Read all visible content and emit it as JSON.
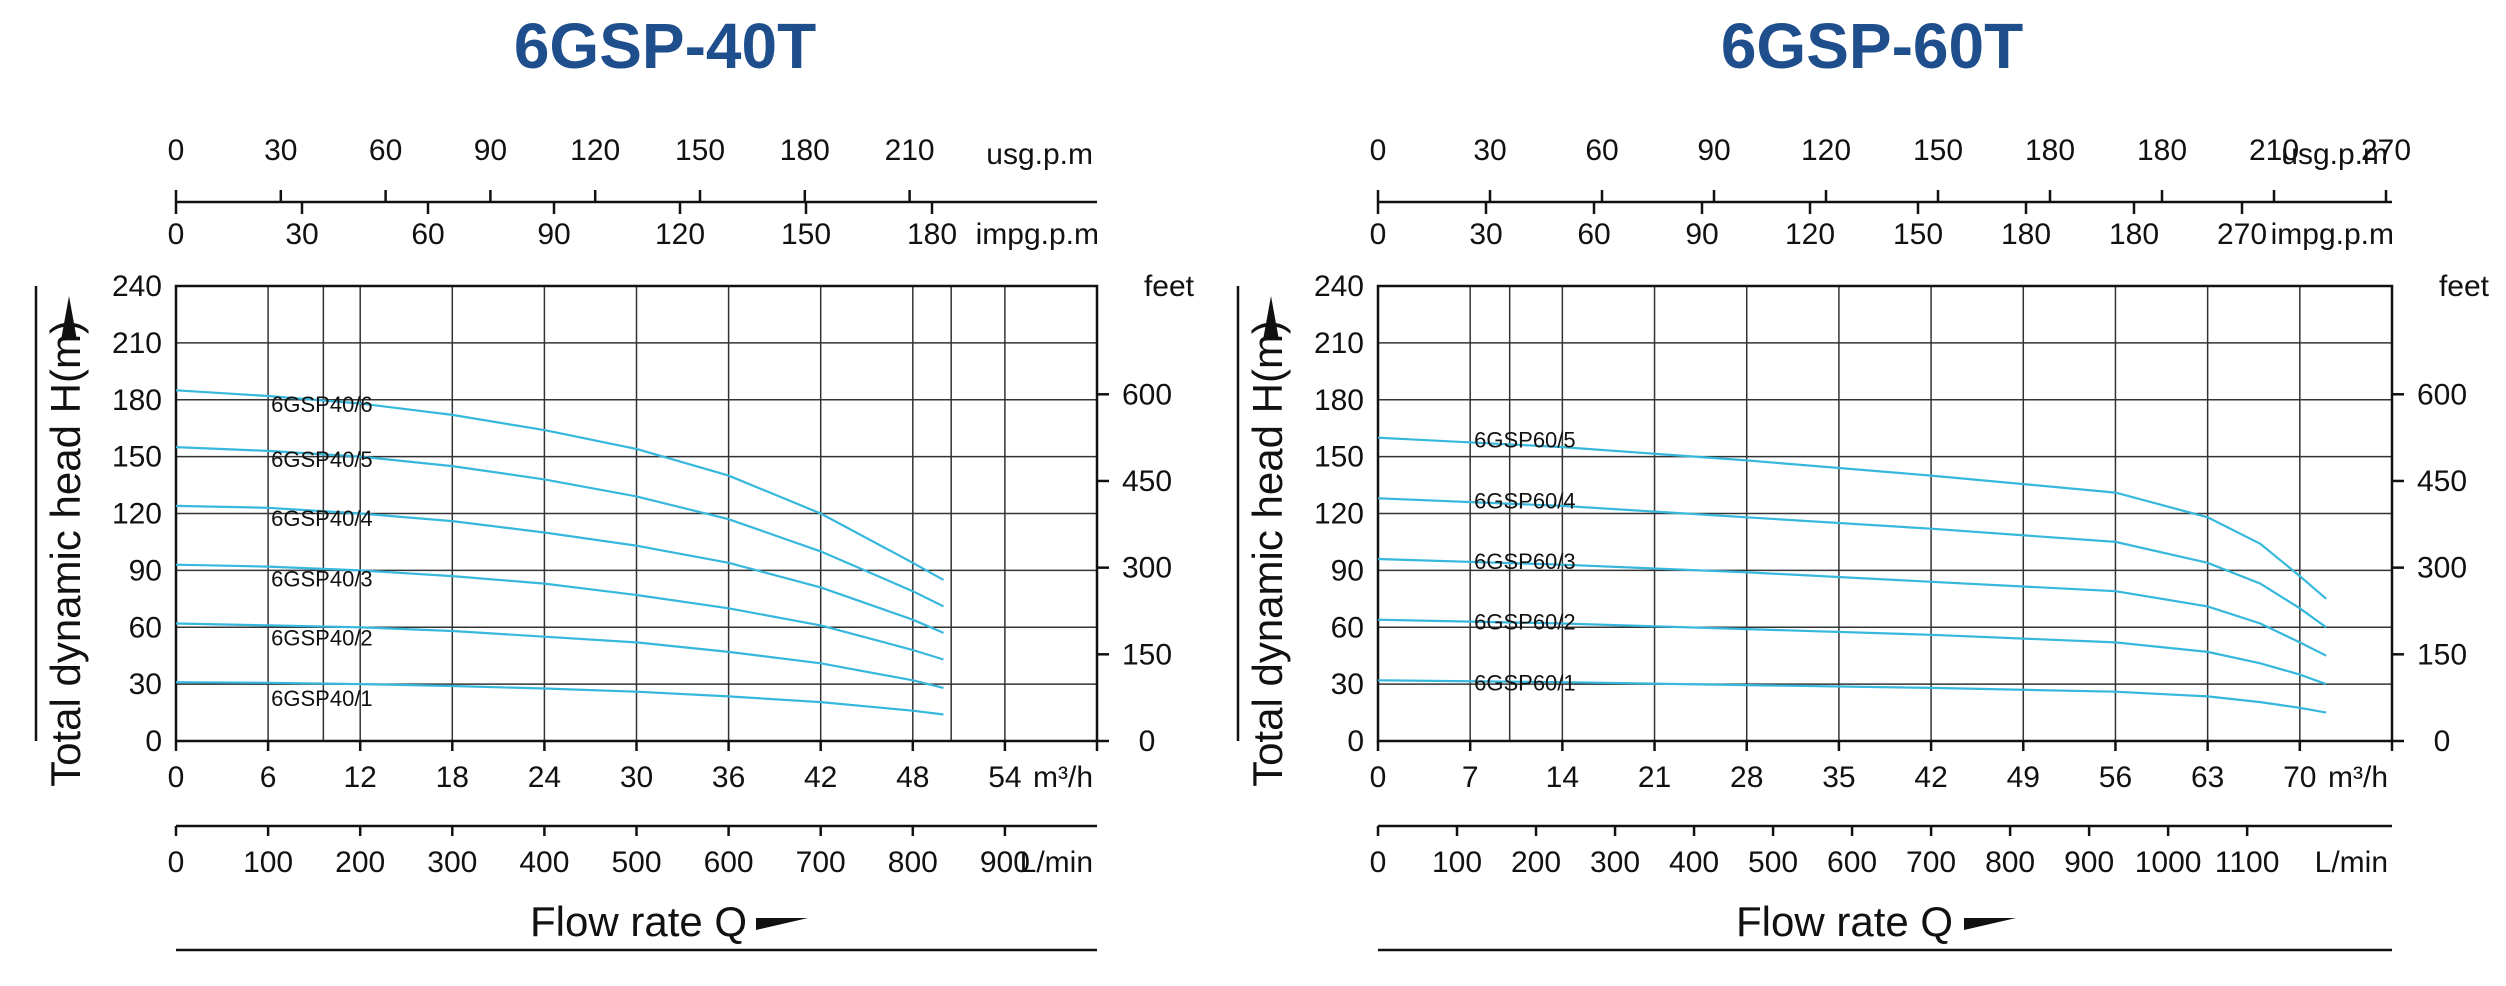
{
  "chart_data": [
    {
      "type": "line",
      "title": "6GSP-40T",
      "ylabel": "Total dynamic head H(m)",
      "xlabel": "Flow rate Q",
      "ylim": [
        0,
        240
      ],
      "xlim": [
        0,
        60
      ],
      "grid": true,
      "y_ticks": [
        "0",
        "30",
        "60",
        "90",
        "120",
        "150",
        "180",
        "210",
        "240"
      ],
      "m3h_ticks": [
        "0",
        "6",
        "12",
        "18",
        "24",
        "30",
        "36",
        "42",
        "48",
        "54"
      ],
      "m3h_unit": "m³/h",
      "lmin_ticks": [
        "0",
        "100",
        "200",
        "300",
        "400",
        "500",
        "600",
        "700",
        "800",
        "900"
      ],
      "lmin_unit": "L/min",
      "usgpm_ticks": [
        "0",
        "30",
        "60",
        "90",
        "120",
        "150",
        "180",
        "210"
      ],
      "usgpm_unit": "usg.p.m",
      "impgpm_ticks": [
        "0",
        "30",
        "60",
        "90",
        "120",
        "150",
        "180"
      ],
      "impgpm_unit": "impg.p.m",
      "feet_ticks": [
        "0",
        "150",
        "300",
        "450",
        "600"
      ],
      "feet_unit": "feet",
      "series": [
        {
          "name": "6GSP40/6",
          "x": [
            0,
            6,
            12,
            18,
            24,
            30,
            36,
            42,
            48,
            50
          ],
          "y": [
            185,
            182,
            178,
            172,
            164,
            154,
            140,
            120,
            94,
            85
          ]
        },
        {
          "name": "6GSP40/5",
          "x": [
            0,
            6,
            12,
            18,
            24,
            30,
            36,
            42,
            48,
            50
          ],
          "y": [
            155,
            153,
            150,
            145,
            138,
            129,
            117,
            100,
            79,
            71
          ]
        },
        {
          "name": "6GSP40/4",
          "x": [
            0,
            6,
            12,
            18,
            24,
            30,
            36,
            42,
            48,
            50
          ],
          "y": [
            124,
            123,
            120,
            116,
            110,
            103,
            94,
            81,
            64,
            57
          ]
        },
        {
          "name": "6GSP40/3",
          "x": [
            0,
            6,
            12,
            18,
            24,
            30,
            36,
            42,
            48,
            50
          ],
          "y": [
            93,
            92,
            90,
            87,
            83,
            77,
            70,
            61,
            48,
            43
          ]
        },
        {
          "name": "6GSP40/2",
          "x": [
            0,
            6,
            12,
            18,
            24,
            30,
            36,
            42,
            48,
            50
          ],
          "y": [
            62,
            61,
            60,
            58,
            55,
            52,
            47,
            41,
            32,
            28
          ]
        },
        {
          "name": "6GSP40/1",
          "x": [
            0,
            6,
            12,
            18,
            24,
            30,
            36,
            42,
            48,
            50
          ],
          "y": [
            31,
            30.7,
            30,
            29,
            27.7,
            26,
            23.5,
            20.5,
            16,
            14
          ]
        }
      ]
    },
    {
      "type": "line",
      "title": "6GSP-60T",
      "ylabel": "Total dynamic head H(m)",
      "xlabel": "Flow rate Q",
      "ylim": [
        0,
        240
      ],
      "xlim": [
        0,
        77
      ],
      "grid": true,
      "y_ticks": [
        "0",
        "30",
        "60",
        "90",
        "120",
        "150",
        "180",
        "210",
        "240"
      ],
      "m3h_ticks": [
        "0",
        "7",
        "14",
        "21",
        "28",
        "35",
        "42",
        "49",
        "56",
        "63",
        "70"
      ],
      "m3h_unit": "m³/h",
      "lmin_ticks": [
        "0",
        "100",
        "200",
        "300",
        "400",
        "500",
        "600",
        "700",
        "800",
        "900",
        "1000",
        "1100"
      ],
      "lmin_unit": "L/min",
      "usgpm_ticks": [
        "0",
        "30",
        "60",
        "90",
        "120",
        "150",
        "180",
        "180",
        "210",
        "270"
      ],
      "usgpm_unit": "usg.p.m",
      "impgpm_ticks": [
        "0",
        "30",
        "60",
        "90",
        "120",
        "150",
        "180",
        "180",
        "270"
      ],
      "impgpm_unit": "impg.p.m",
      "feet_ticks": [
        "0",
        "150",
        "300",
        "450",
        "600"
      ],
      "feet_unit": "feet",
      "series": [
        {
          "name": "6GSP60/5",
          "x": [
            0,
            14,
            28,
            42,
            56,
            63,
            67,
            70,
            72
          ],
          "y": [
            160,
            155,
            148,
            140,
            131,
            118,
            104,
            87,
            75
          ]
        },
        {
          "name": "6GSP60/4",
          "x": [
            0,
            14,
            28,
            42,
            56,
            63,
            67,
            70,
            72
          ],
          "y": [
            128,
            124,
            118,
            112,
            105,
            94,
            83,
            70,
            60
          ]
        },
        {
          "name": "6GSP60/3",
          "x": [
            0,
            14,
            28,
            42,
            56,
            63,
            67,
            70,
            72
          ],
          "y": [
            96,
            93,
            89,
            84,
            79,
            71,
            62,
            52,
            45
          ]
        },
        {
          "name": "6GSP60/2",
          "x": [
            0,
            14,
            28,
            42,
            56,
            63,
            67,
            70,
            72
          ],
          "y": [
            64,
            62,
            59,
            56,
            52,
            47,
            41,
            35,
            30
          ]
        },
        {
          "name": "6GSP60/1",
          "x": [
            0,
            14,
            28,
            42,
            56,
            63,
            67,
            70,
            72
          ],
          "y": [
            32,
            31,
            29.5,
            28,
            26,
            23.5,
            20.5,
            17.5,
            15
          ]
        }
      ]
    }
  ],
  "colors": {
    "title": "#1f4e8c",
    "curve": "#36b7dc",
    "grid": "#333333"
  }
}
